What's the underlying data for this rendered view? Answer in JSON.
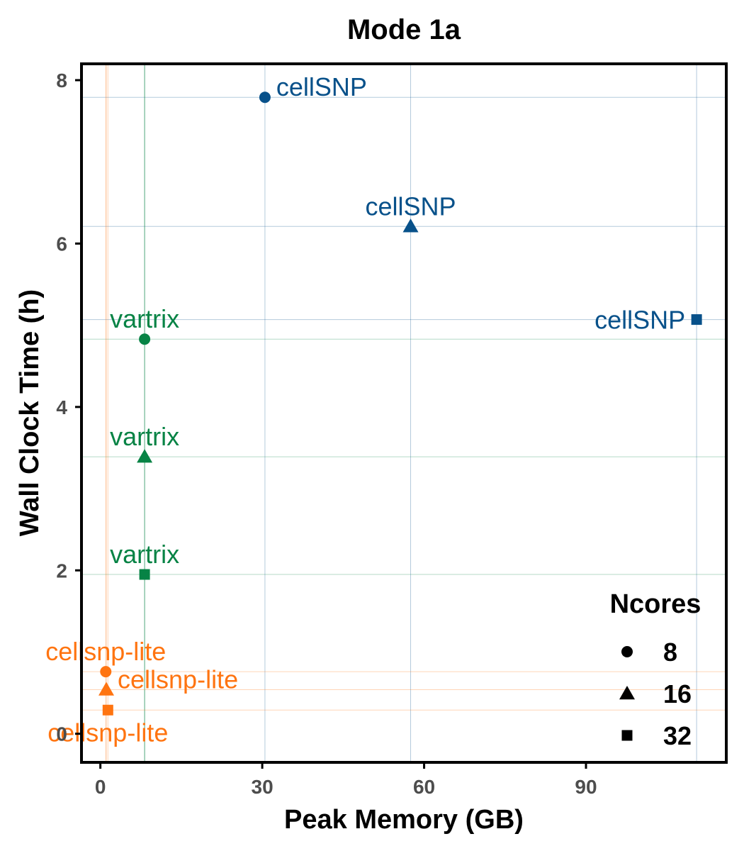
{
  "chart_data": {
    "type": "scatter",
    "title": "Mode 1a",
    "xlabel": "Peak Memory (GB)",
    "ylabel": "Wall Clock Time (h)",
    "xlim": [
      -3.5,
      116
    ],
    "ylim": [
      -0.35,
      8.2
    ],
    "xticks": [
      0,
      30,
      60,
      90
    ],
    "yticks": [
      0,
      2,
      4,
      6,
      8
    ],
    "colors": {
      "cellSNP": "#08518a",
      "vartrix": "#078345",
      "cellsnp-lite": "#ff7410"
    },
    "shapes": {
      "8": "circle",
      "16": "triangle",
      "32": "square"
    },
    "points": [
      {
        "tool": "cellSNP",
        "label": "cellSNP",
        "ncores": "8",
        "x": 30.5,
        "y": 7.79,
        "label_pos": "right"
      },
      {
        "tool": "cellSNP",
        "label": "cellSNP",
        "ncores": "16",
        "x": 57.5,
        "y": 6.21,
        "label_pos": "above"
      },
      {
        "tool": "cellSNP",
        "label": "cellSNP",
        "ncores": "32",
        "x": 110.5,
        "y": 5.07,
        "label_pos": "left"
      },
      {
        "tool": "vartrix",
        "label": "vartrix",
        "ncores": "8",
        "x": 8.2,
        "y": 4.83,
        "label_pos": "above"
      },
      {
        "tool": "vartrix",
        "label": "vartrix",
        "ncores": "16",
        "x": 8.2,
        "y": 3.39,
        "label_pos": "above"
      },
      {
        "tool": "vartrix",
        "label": "vartrix",
        "ncores": "32",
        "x": 8.2,
        "y": 1.95,
        "label_pos": "above"
      },
      {
        "tool": "cellsnp-lite",
        "label": "cellsnp-lite",
        "ncores": "8",
        "x": 1.0,
        "y": 0.76,
        "label_pos": "above"
      },
      {
        "tool": "cellsnp-lite",
        "label": "cellsnp-lite",
        "ncores": "16",
        "x": 1.1,
        "y": 0.54,
        "label_pos": "right"
      },
      {
        "tool": "cellsnp-lite",
        "label": "cellsnp-lite",
        "ncores": "32",
        "x": 1.4,
        "y": 0.29,
        "label_pos": "below"
      }
    ],
    "legend": {
      "title": "Ncores",
      "position": "bottom-right",
      "entries": [
        {
          "label": "8",
          "shape": "circle"
        },
        {
          "label": "16",
          "shape": "triangle"
        },
        {
          "label": "32",
          "shape": "square"
        }
      ]
    },
    "grid": true
  }
}
